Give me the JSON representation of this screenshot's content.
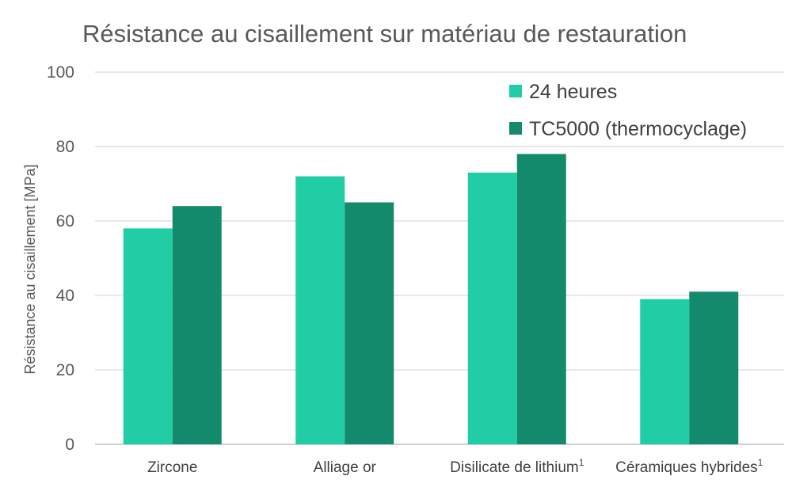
{
  "chart_data": {
    "type": "bar",
    "title": "Résistance au cisaillement sur matériau de restauration",
    "ylabel": "Résistance au cisaillement [MPa]",
    "xlabel": "",
    "ylim": [
      0,
      100
    ],
    "yticks": [
      0,
      20,
      40,
      60,
      80,
      100
    ],
    "grid": true,
    "legend_position": "top-right",
    "categories": [
      "Zircone",
      "Alliage or",
      "Disilicate de lithium",
      "Céramiques hybrides"
    ],
    "category_superscripts": [
      "",
      "",
      "1",
      "1"
    ],
    "series": [
      {
        "name": "24 heures",
        "color": "#20cda5",
        "values": [
          58,
          72,
          73,
          39
        ]
      },
      {
        "name": "TC5000 (thermocyclage)",
        "color": "#148a6c",
        "values": [
          64,
          65,
          78,
          41
        ]
      }
    ]
  }
}
